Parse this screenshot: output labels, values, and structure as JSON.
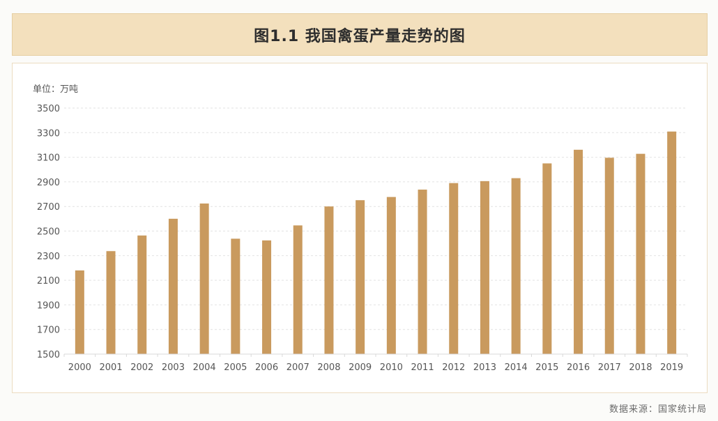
{
  "title": "图1.1 我国禽蛋产量走势的图",
  "source": "数据来源：国家统计局",
  "colors": {
    "bar": "#c99a5e",
    "title_bg": "#f3e0bd",
    "grid": "#e2e2e2",
    "axis": "#d8d8d8"
  },
  "chart_data": {
    "type": "bar",
    "unit_label": "单位：万吨",
    "categories": [
      "2000",
      "2001",
      "2002",
      "2003",
      "2004",
      "2005",
      "2006",
      "2007",
      "2008",
      "2009",
      "2010",
      "2011",
      "2012",
      "2013",
      "2014",
      "2015",
      "2016",
      "2017",
      "2018",
      "2019"
    ],
    "values": [
      2180,
      2337,
      2464,
      2600,
      2724,
      2438,
      2424,
      2546,
      2700,
      2751,
      2777,
      2837,
      2890,
      2906,
      2930,
      3050,
      3161,
      3096,
      3128,
      3309
    ],
    "ylim": [
      1500,
      3500
    ],
    "yticks": [
      1500,
      1700,
      1900,
      2100,
      2300,
      2500,
      2700,
      2900,
      3100,
      3300,
      3500
    ],
    "grid": true,
    "grid_style": "dashed-horizontal",
    "legend": "none"
  }
}
